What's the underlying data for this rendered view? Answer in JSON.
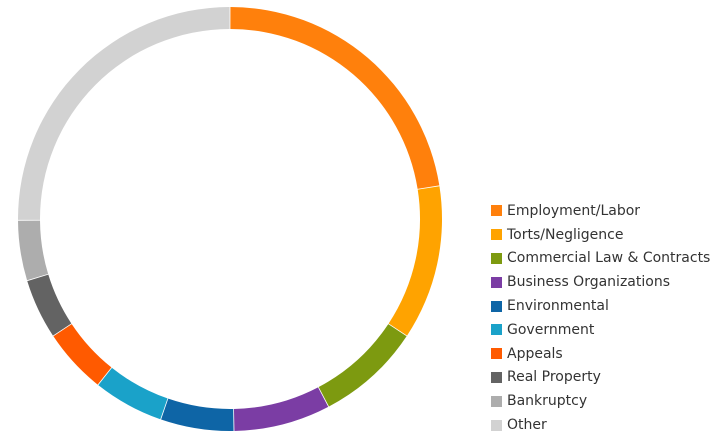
{
  "chart_data": {
    "type": "pie",
    "donut": true,
    "title": "",
    "legend_position": "right",
    "categories": [
      "Employment/Labor",
      "Torts/Negligence",
      "Commercial Law & Contracts",
      "Business Organizations",
      "Environmental",
      "Government",
      "Appeals",
      "Real Property",
      "Bankruptcy",
      "Other"
    ],
    "values": [
      22.5,
      11.8,
      8.0,
      7.4,
      5.6,
      5.4,
      5.0,
      4.6,
      4.6,
      25.1
    ],
    "colors": [
      "#FF800C",
      "#FFA300",
      "#7D9A10",
      "#7B3DA4",
      "#0E65A6",
      "#1AA2C9",
      "#FF5A00",
      "#636363",
      "#ADADAD",
      "#D2D2D2"
    ]
  }
}
